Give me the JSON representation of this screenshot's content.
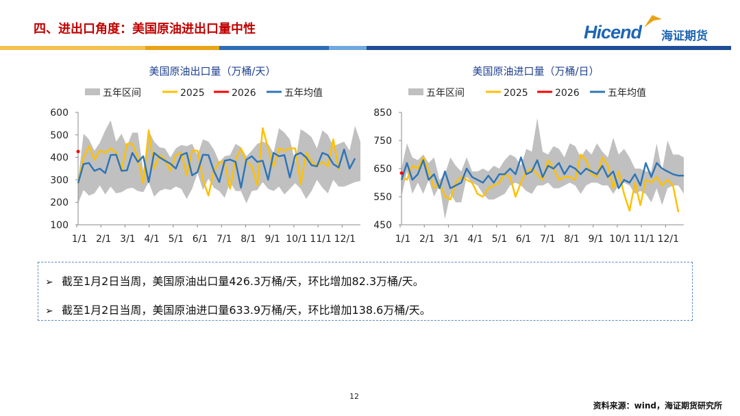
{
  "header": {
    "title": "四、进出口角度：美国原油进出口量中性",
    "logo_text": "Hicend",
    "logo_cn": "海证期货",
    "logo_registered": "®"
  },
  "colors": {
    "title": "#c00000",
    "brand_blue": "#1f66b3",
    "band_yellow": "#f2c14e",
    "band_orange": "#e8a317",
    "band_blue": "#2e6db4",
    "band_light_blue": "#6fa8dc",
    "range": "#c0c0c0",
    "y2025": "#ffc000",
    "y2026": "#ff0000",
    "avg": "#2e75b6"
  },
  "chart_data": [
    {
      "type": "line",
      "title": "美国原油出口量（万桶/天）",
      "legend": [
        "五年区间",
        "2025",
        "2026",
        "五年均值"
      ],
      "ylim": [
        100,
        600
      ],
      "yticks": [
        100,
        200,
        300,
        400,
        500,
        600
      ],
      "x_tick_labels": [
        "1/1",
        "2/1",
        "3/1",
        "4/1",
        "5/1",
        "6/1",
        "7/1",
        "8/1",
        "9/1",
        "10/1",
        "11/1",
        "12/1"
      ],
      "weeks": 53,
      "series": [
        {
          "name": "五年区间上限",
          "values": [
            300,
            505,
            480,
            430,
            465,
            520,
            565,
            470,
            505,
            450,
            510,
            510,
            340,
            520,
            470,
            445,
            440,
            400,
            440,
            455,
            450,
            460,
            410,
            480,
            470,
            435,
            380,
            405,
            410,
            460,
            445,
            405,
            430,
            460,
            470,
            460,
            420,
            530,
            510,
            480,
            380,
            525,
            510,
            490,
            440,
            520,
            500,
            450,
            460,
            470,
            430,
            540,
            470
          ]
        },
        {
          "name": "五年区间下限",
          "values": [
            195,
            255,
            230,
            240,
            275,
            235,
            270,
            240,
            245,
            260,
            265,
            250,
            245,
            290,
            225,
            250,
            260,
            255,
            270,
            260,
            215,
            260,
            330,
            255,
            305,
            265,
            250,
            220,
            290,
            250,
            250,
            195,
            250,
            255,
            290,
            260,
            250,
            270,
            235,
            260,
            285,
            260,
            215,
            250,
            300,
            265,
            240,
            300,
            270,
            270,
            280,
            290,
            295
          ]
        },
        {
          "name": "2025",
          "values": [
            283,
            400,
            450,
            390,
            430,
            420,
            440,
            420,
            340,
            460,
            460,
            400,
            283,
            520,
            350,
            410,
            390,
            340,
            410,
            420,
            320,
            430,
            430,
            300,
            230,
            340,
            380,
            380,
            260,
            390,
            440,
            380,
            360,
            275,
            530,
            440,
            360,
            440,
            430,
            440,
            440,
            280,
            420,
            380,
            360,
            380,
            360,
            480,
            345
          ]
        },
        {
          "name": "2026",
          "values": [
            426
          ]
        },
        {
          "name": "五年均值",
          "values": [
            285,
            370,
            375,
            340,
            350,
            330,
            410,
            412,
            340,
            342,
            420,
            380,
            405,
            290,
            420,
            400,
            385,
            372,
            350,
            410,
            420,
            320,
            335,
            412,
            410,
            340,
            290,
            385,
            390,
            380,
            265,
            390,
            405,
            380,
            385,
            300,
            420,
            405,
            410,
            310,
            410,
            420,
            400,
            365,
            360,
            420,
            410,
            370,
            355,
            435,
            350,
            395
          ]
        }
      ]
    },
    {
      "type": "line",
      "title": "美国原油进口量（万桶/日）",
      "legend": [
        "五年区间",
        "2025",
        "2026",
        "五年均值"
      ],
      "ylim": [
        450,
        850
      ],
      "yticks": [
        450,
        550,
        650,
        750,
        850
      ],
      "x_tick_labels": [
        "1/1",
        "2/1",
        "3/1",
        "4/1",
        "5/1",
        "6/1",
        "7/1",
        "8/1",
        "9/1",
        "10/1",
        "11/1",
        "12/1"
      ],
      "weeks": 53,
      "series": [
        {
          "name": "五年区间上限",
          "values": [
            650,
            740,
            690,
            680,
            700,
            670,
            690,
            610,
            630,
            690,
            660,
            640,
            690,
            640,
            640,
            650,
            640,
            660,
            650,
            680,
            700,
            690,
            660,
            720,
            710,
            830,
            710,
            700,
            730,
            720,
            690,
            740,
            730,
            690,
            720,
            700,
            740,
            710,
            690,
            760,
            700,
            720,
            690,
            650,
            650,
            640,
            640,
            740,
            640,
            750,
            700,
            700,
            690
          ]
        },
        {
          "name": "五年区间下限",
          "values": [
            550,
            640,
            560,
            600,
            560,
            610,
            550,
            590,
            470,
            560,
            530,
            530,
            620,
            600,
            590,
            560,
            540,
            540,
            550,
            560,
            590,
            600,
            590,
            570,
            560,
            590,
            590,
            600,
            580,
            580,
            590,
            600,
            590,
            560,
            590,
            600,
            600,
            590,
            590,
            560,
            590,
            600,
            590,
            560,
            570,
            560,
            530,
            580,
            520,
            580,
            590,
            590,
            560
          ]
        },
        {
          "name": "2025",
          "values": [
            620,
            610,
            660,
            650,
            690,
            640,
            580,
            600,
            550,
            540,
            600,
            620,
            610,
            600,
            560,
            550,
            580,
            590,
            600,
            630,
            620,
            550,
            600,
            640,
            650,
            630,
            610,
            680,
            650,
            610,
            620,
            620,
            610,
            700,
            680,
            630,
            620,
            690,
            660,
            580,
            640,
            560,
            500,
            600,
            520,
            610,
            600,
            620,
            590,
            610,
            590,
            495
          ]
        },
        {
          "name": "2026",
          "values": [
            634
          ]
        },
        {
          "name": "五年均值",
          "values": [
            610,
            670,
            610,
            630,
            680,
            610,
            630,
            580,
            640,
            580,
            590,
            600,
            650,
            620,
            610,
            600,
            625,
            600,
            630,
            630,
            650,
            630,
            690,
            630,
            640,
            680,
            620,
            660,
            650,
            670,
            630,
            660,
            650,
            630,
            650,
            640,
            630,
            660,
            620,
            640,
            580,
            610,
            600,
            630,
            590,
            670,
            620,
            670,
            650,
            640,
            630,
            625,
            625
          ]
        }
      ]
    }
  ],
  "notes": [
    {
      "arrow": "➢",
      "text": "截至1月2日当周，美国原油出口量426.3万桶/天，环比增加82.3万桶/天。"
    },
    {
      "arrow": "➢",
      "text": "截至1月2日当周，美国原油进口量633.9万桶/天，环比增加138.6万桶/天。"
    }
  ],
  "footer": {
    "page_number": "12",
    "source": "资料来源：wind，海证期货研究所"
  }
}
